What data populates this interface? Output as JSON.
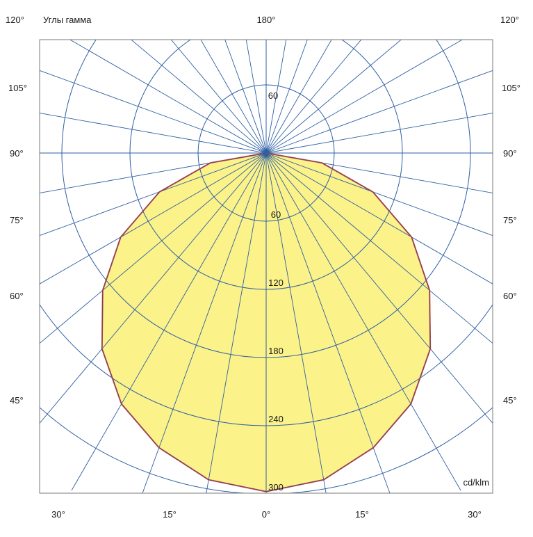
{
  "chart_data": {
    "type": "polar",
    "title": "Углы гамма",
    "unit_label": "cd/klm",
    "radial_ticks": [
      60,
      120,
      180,
      240,
      300
    ],
    "radial_max": 300,
    "upper_radial_tick": 60,
    "angle_labels_top": {
      "left": "120°",
      "center": "180°",
      "right": "120°"
    },
    "angle_labels_side": [
      "105°",
      "90°",
      "75°",
      "60°",
      "45°"
    ],
    "angle_labels_bottom": [
      "30°",
      "15°",
      "0°",
      "15°",
      "30°"
    ],
    "spoke_angles_deg": [
      0,
      10,
      20,
      30,
      40,
      50,
      60,
      70,
      80,
      90,
      100,
      110,
      120,
      130,
      140,
      150,
      160,
      170,
      180
    ],
    "series": [
      {
        "gamma_deg": [
          0,
          10,
          20,
          30,
          40,
          50,
          60,
          70,
          80,
          90
        ],
        "intensity": [
          298,
          292,
          276,
          255,
          225,
          188,
          148,
          100,
          50,
          0
        ]
      }
    ],
    "colors": {
      "fill": "#fbf28a",
      "outline": "#c0504d",
      "grid": "#2e5fa3",
      "frame": "#7a7a7a",
      "text": "#1a1a1a"
    }
  }
}
